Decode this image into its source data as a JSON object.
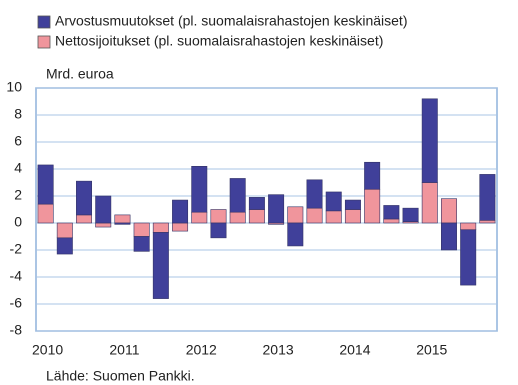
{
  "chart_data": {
    "type": "stacked_bar",
    "axis_label": "Mrd. euroa",
    "source": "Lähde: Suomen Pankki.",
    "categories": [
      "2010",
      null,
      null,
      null,
      "2011",
      null,
      null,
      null,
      "2012",
      null,
      null,
      null,
      "2013",
      null,
      null,
      null,
      "2014",
      null,
      null,
      null,
      "2015",
      null,
      null,
      null
    ],
    "series": [
      {
        "name": "Arvostusmuutokset (pl. suomalaisrahastojen keskinäiset)",
        "color": "#40409a",
        "values": [
          2.9,
          -1.2,
          2.5,
          2.0,
          -0.1,
          -1.1,
          -4.9,
          1.7,
          3.4,
          -1.1,
          2.5,
          0.9,
          2.1,
          -1.7,
          2.1,
          1.4,
          0.7,
          2.0,
          1.0,
          1.0,
          6.2,
          -2.0,
          -4.1,
          3.4
        ]
      },
      {
        "name": "Nettosijoitukset (pl. suomalaisrahastojen keskinäiset)",
        "color": "#f0959c",
        "values": [
          1.4,
          -1.1,
          0.6,
          -0.3,
          0.6,
          -1.0,
          -0.7,
          -0.6,
          0.8,
          1.0,
          0.8,
          1.0,
          -0.1,
          1.2,
          1.1,
          0.9,
          1.0,
          2.5,
          0.3,
          0.1,
          3.0,
          1.8,
          -0.5,
          0.2
        ]
      }
    ],
    "ylim": [
      -8,
      10
    ],
    "yticks": [
      -8,
      -6,
      -4,
      -2,
      0,
      2,
      4,
      6,
      8,
      10
    ],
    "grid": true
  }
}
